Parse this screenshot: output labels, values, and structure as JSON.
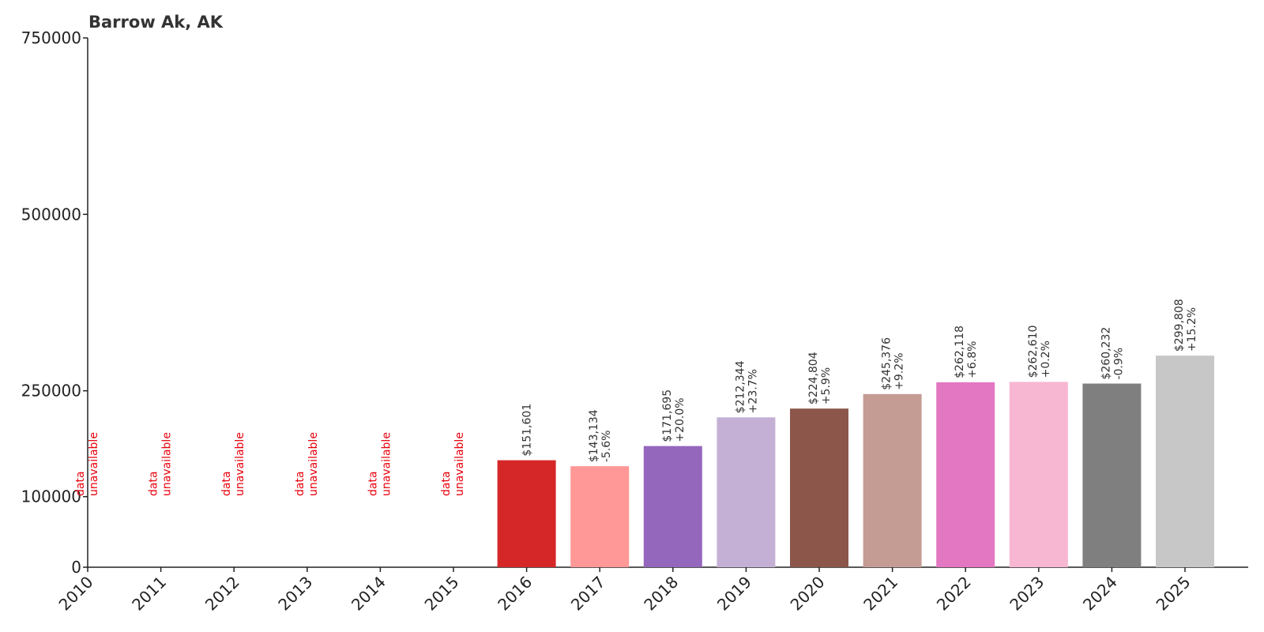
{
  "chart_data": {
    "type": "bar",
    "title": "Barrow Ak, AK",
    "xlabel": "",
    "ylabel": "",
    "ylim": [
      0,
      750000
    ],
    "yticks": [
      0,
      100000,
      250000,
      500000,
      750000
    ],
    "grid": false,
    "legend": "none",
    "categories": [
      "2010",
      "2011",
      "2012",
      "2013",
      "2014",
      "2015",
      "2016",
      "2017",
      "2018",
      "2019",
      "2020",
      "2021",
      "2022",
      "2023",
      "2024",
      "2025"
    ],
    "values": [
      null,
      null,
      null,
      null,
      null,
      null,
      151601,
      143134,
      171695,
      212344,
      224804,
      245376,
      262118,
      262610,
      260232,
      299808
    ],
    "value_labels": [
      "",
      "",
      "",
      "",
      "",
      "",
      "$151,601",
      "$143,134",
      "$171,695",
      "$212,344",
      "$224,804",
      "$245,376",
      "$262,118",
      "$262,610",
      "$260,232",
      "$299,808"
    ],
    "change_labels": [
      "",
      "",
      "",
      "",
      "",
      "",
      "",
      "-5.6%",
      "+20.0%",
      "+23.7%",
      "+5.9%",
      "+9.2%",
      "+6.8%",
      "+0.2%",
      "-0.9%",
      "+15.2%"
    ],
    "unavailable_label": [
      "data",
      "unavailable"
    ],
    "colors": [
      "#d62728",
      "#ff9896",
      "#9467bd",
      "#c5b0d5",
      "#8c564b",
      "#c49c94",
      "#e377c2",
      "#f7b6d2",
      "#7f7f7f",
      "#c7c7c7"
    ]
  }
}
